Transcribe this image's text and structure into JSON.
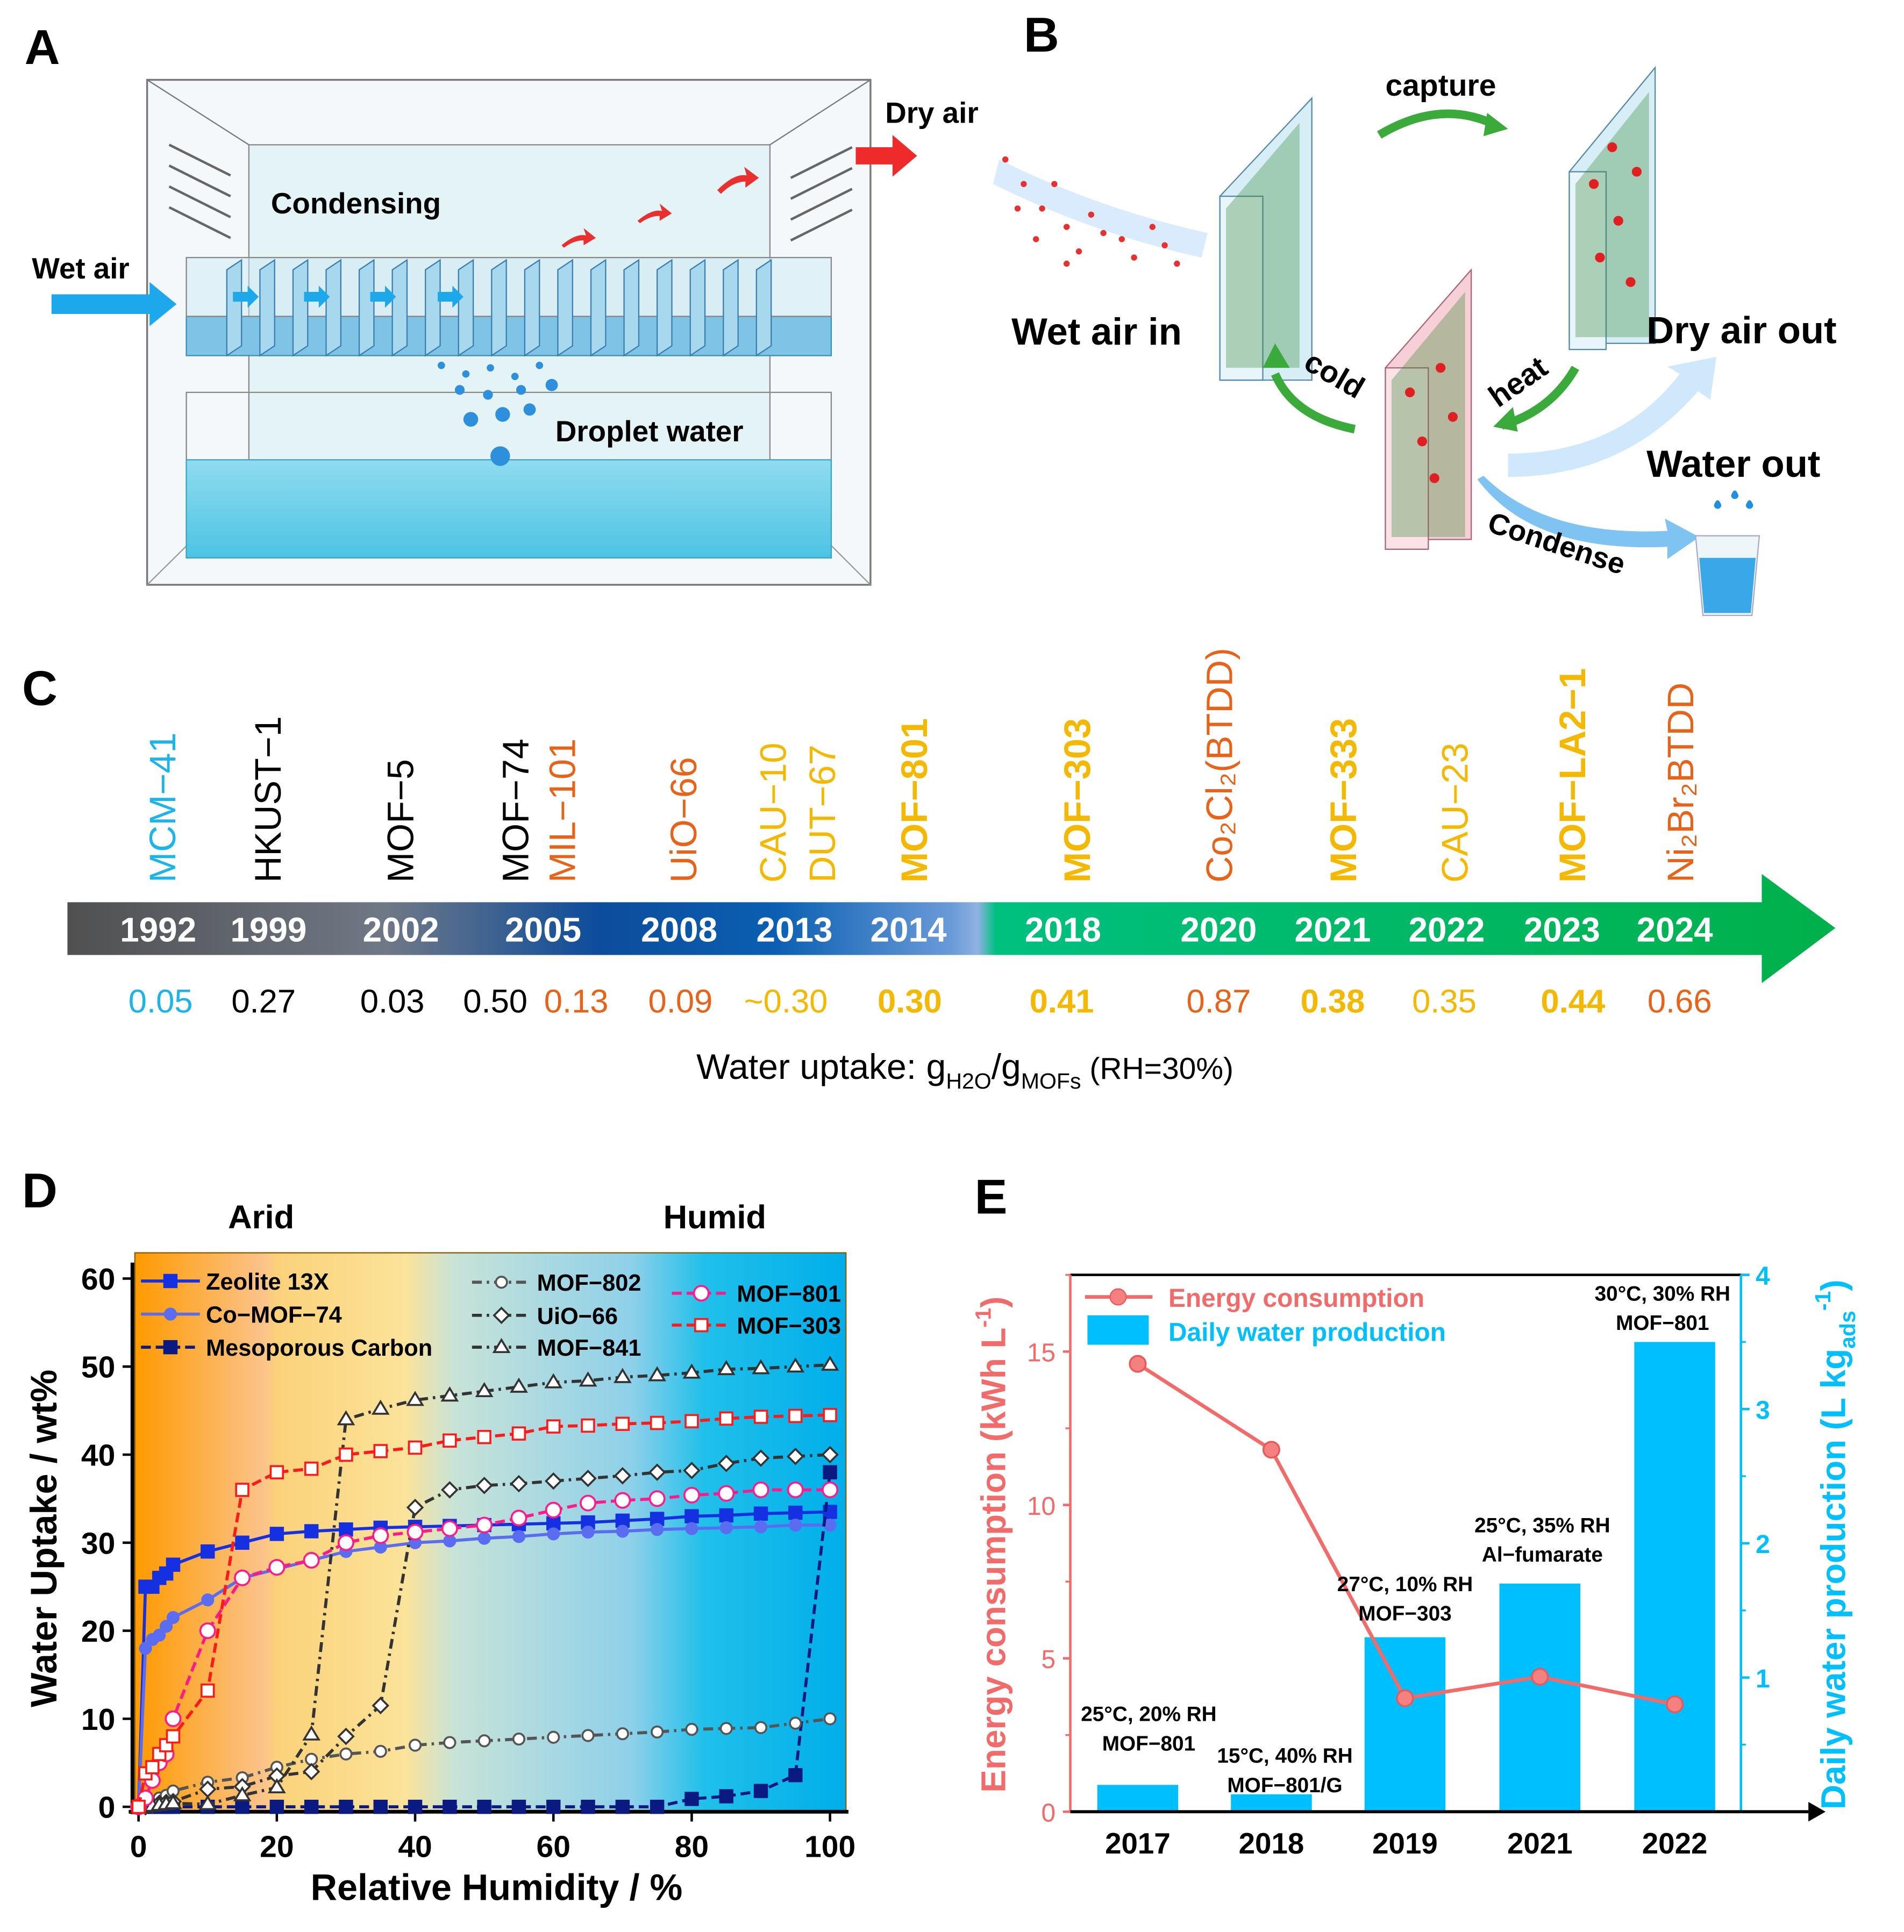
{
  "panels": {
    "a": "A",
    "b": "B",
    "c": "C",
    "d": "D",
    "e": "E"
  },
  "panel_a": {
    "condensing": "Condensing",
    "wet_air": "Wet air",
    "dry_air": "Dry air",
    "droplet_water": "Droplet water"
  },
  "panel_b": {
    "capture": "capture",
    "wet_air_in": "Wet air in",
    "dry_air_out": "Dry air out",
    "water_out": "Water out",
    "cold": "cold",
    "heat": "heat",
    "condense": "Condense"
  },
  "timeline": {
    "items": [
      {
        "year": "1992",
        "names": [
          {
            "n": "MCM−41",
            "c": "#1eb4ea",
            "b": false
          }
        ],
        "values": [
          {
            "v": "0.05",
            "c": "#1eb4ea",
            "b": false
          }
        ]
      },
      {
        "year": "1999",
        "names": [
          {
            "n": "HKUST−1",
            "c": "#000000",
            "b": false
          }
        ],
        "values": [
          {
            "v": "0.27",
            "c": "#000000",
            "b": false
          }
        ]
      },
      {
        "year": "2002",
        "names": [
          {
            "n": "MOF−5",
            "c": "#000000",
            "b": false
          }
        ],
        "values": [
          {
            "v": "0.03",
            "c": "#000000",
            "b": false
          }
        ]
      },
      {
        "year": "2005",
        "names": [
          {
            "n": "MOF−74",
            "c": "#000000",
            "b": false
          },
          {
            "n": "MIL−101",
            "c": "#e8631a",
            "b": false
          }
        ],
        "values": [
          {
            "v": "0.50",
            "c": "#000000",
            "b": false
          },
          {
            "v": "0.13",
            "c": "#e8631a",
            "b": false
          }
        ]
      },
      {
        "year": "2008",
        "names": [
          {
            "n": "UiO−66",
            "c": "#e8631a",
            "b": false
          }
        ],
        "values": [
          {
            "v": "0.09",
            "c": "#e8631a",
            "b": false
          }
        ]
      },
      {
        "year": "2013",
        "names": [
          {
            "n": "CAU−10",
            "c": "#f5b800",
            "b": false
          },
          {
            "n": "DUT−67",
            "c": "#f5b800",
            "b": false
          }
        ],
        "values": [
          {
            "v": "~0.30",
            "c": "#f5b800",
            "b": false
          }
        ]
      },
      {
        "year": "2014",
        "names": [
          {
            "n": "MOF−801",
            "c": "#f5b800",
            "b": true
          }
        ],
        "values": [
          {
            "v": "0.30",
            "c": "#f5b800",
            "b": true
          }
        ]
      },
      {
        "year": "2018",
        "names": [
          {
            "n": "MOF−303",
            "c": "#f5b800",
            "b": true
          }
        ],
        "values": [
          {
            "v": "0.41",
            "c": "#f5b800",
            "b": true
          }
        ]
      },
      {
        "year": "2020",
        "names": [
          {
            "n": "Co₂Cl₂(BTDD)",
            "c": "#e8631a",
            "b": false
          }
        ],
        "values": [
          {
            "v": "0.87",
            "c": "#e8631a",
            "b": false
          }
        ]
      },
      {
        "year": "2021",
        "names": [
          {
            "n": "MOF−333",
            "c": "#f5b800",
            "b": true
          }
        ],
        "values": [
          {
            "v": "0.38",
            "c": "#f5b800",
            "b": true
          }
        ]
      },
      {
        "year": "2022",
        "names": [
          {
            "n": "CAU−23",
            "c": "#f5b800",
            "b": false
          }
        ],
        "values": [
          {
            "v": "0.35",
            "c": "#f5b800",
            "b": false
          }
        ]
      },
      {
        "year": "2023",
        "names": [
          {
            "n": "MOF−LA2−1",
            "c": "#f5b800",
            "b": true
          }
        ],
        "values": [
          {
            "v": "0.44",
            "c": "#f5b800",
            "b": true
          }
        ]
      },
      {
        "year": "2024",
        "names": [
          {
            "n": "Ni₂Br₂BTDD",
            "c": "#e8631a",
            "b": false
          }
        ],
        "values": [
          {
            "v": "0.66",
            "c": "#e8631a",
            "b": false
          }
        ]
      }
    ],
    "caption": {
      "prefix": "Water uptake: g",
      "sub1": "H2O",
      "mid": "/g",
      "sub2": "MOFs",
      "suffix": " (RH=30%)"
    }
  },
  "chart_data": [
    {
      "type": "line",
      "panel": "D",
      "xlabel": "Relative Humidity / %",
      "ylabel": "Water Uptake / wt%",
      "xlim": [
        0,
        100
      ],
      "ylim": [
        0,
        60
      ],
      "xticks": [
        "0",
        "20",
        "40",
        "60",
        "80",
        "100"
      ],
      "yticks": [
        "0",
        "10",
        "20",
        "30",
        "40",
        "50",
        "60"
      ],
      "region_labels": {
        "arid": "Arid",
        "humid": "Humid"
      },
      "x": [
        0,
        1,
        2,
        3,
        4,
        5,
        10,
        15,
        20,
        25,
        30,
        35,
        40,
        45,
        50,
        55,
        60,
        65,
        70,
        75,
        80,
        85,
        90,
        95,
        100
      ],
      "series": [
        {
          "name": "Zeolite 13X",
          "color": "#1530e0",
          "marker": "square-filled",
          "dash": "solid",
          "values": [
            0,
            25,
            25,
            26,
            26.5,
            27.5,
            29,
            30,
            31,
            31.3,
            31.5,
            31.7,
            31.8,
            31.9,
            32,
            32.1,
            32.2,
            32.3,
            32.5,
            32.7,
            33,
            33.1,
            33.3,
            33.4,
            33.5
          ]
        },
        {
          "name": "Co−MOF−74",
          "color": "#5a6cf0",
          "marker": "circle-filled",
          "dash": "solid",
          "values": [
            0,
            18,
            19,
            19.5,
            20.5,
            21.5,
            23.5,
            26,
            27,
            28,
            29,
            29.5,
            30,
            30.2,
            30.5,
            30.7,
            31,
            31.2,
            31.3,
            31.5,
            31.6,
            31.7,
            31.8,
            32,
            32
          ]
        },
        {
          "name": "Mesoporous Carbon",
          "color": "#0a1a80",
          "marker": "square-filled",
          "dash": "dash",
          "values": [
            0,
            0,
            0,
            0,
            0,
            0,
            0,
            0,
            0,
            0,
            0,
            0,
            0,
            0,
            0,
            0,
            0,
            0,
            0,
            0,
            0.9,
            1.2,
            1.8,
            3.6,
            38
          ]
        },
        {
          "name": "MOF−802",
          "color": "#555555",
          "marker": "circle-open",
          "dash": "dashdot",
          "values": [
            0,
            0.3,
            0.6,
            1,
            1.3,
            1.8,
            2.8,
            3.3,
            4.5,
            5.4,
            6,
            6.3,
            7,
            7.3,
            7.5,
            7.7,
            7.9,
            8.1,
            8.3,
            8.5,
            8.8,
            8.9,
            9,
            9.5,
            10
          ]
        },
        {
          "name": "UiO−66",
          "color": "#333333",
          "marker": "diamond-open",
          "dash": "dashdot",
          "values": [
            0,
            0,
            0.2,
            0.4,
            0.5,
            0.6,
            2,
            2.3,
            3.5,
            4,
            8,
            11.5,
            34,
            36,
            36.5,
            36.7,
            37,
            37.3,
            37.6,
            38,
            38.2,
            39,
            39.6,
            39.8,
            40
          ]
        },
        {
          "name": "MOF−841",
          "color": "#333333",
          "marker": "triangle-open",
          "dash": "dashdot",
          "values": [
            0,
            0,
            0.1,
            0.2,
            0.3,
            0.4,
            0.3,
            1.3,
            2.2,
            8.2,
            44,
            45.2,
            46.2,
            46.7,
            47.2,
            47.7,
            48.2,
            48.4,
            48.8,
            49,
            49.3,
            49.7,
            49.8,
            50,
            50.2
          ]
        },
        {
          "name": "MOF−801",
          "color": "#ff1a8c",
          "marker": "circle-open",
          "dash": "dash",
          "values": [
            0,
            1,
            3,
            5,
            6,
            10,
            20,
            26,
            27.2,
            28,
            30,
            30.8,
            31.2,
            31.6,
            32,
            32.8,
            33.7,
            34.5,
            34.8,
            35,
            35.4,
            35.6,
            36,
            36,
            36
          ]
        },
        {
          "name": "MOF−303",
          "color": "#ff1a1a",
          "marker": "square-open",
          "dash": "dash",
          "values": [
            0,
            3.8,
            4.5,
            6,
            7,
            8,
            13.2,
            36,
            38,
            38.4,
            40,
            40.4,
            40.8,
            41.6,
            42,
            42.4,
            43.2,
            43.3,
            43.5,
            43.6,
            43.8,
            44.1,
            44.3,
            44.4,
            44.5
          ]
        }
      ]
    },
    {
      "type": "bar+line",
      "panel": "E",
      "categories": [
        "2017",
        "2018",
        "2019",
        "2021",
        "2022"
      ],
      "series": [
        {
          "name": "Energy consumption",
          "type": "line",
          "axis": "left",
          "color": "#f26b6b",
          "values": [
            14.6,
            11.8,
            3.7,
            4.4,
            3.5
          ]
        },
        {
          "name": "Daily water production",
          "type": "bar",
          "axis": "right",
          "color": "#00bfff",
          "values": [
            0.2,
            0.13,
            1.3,
            1.7,
            3.5
          ]
        }
      ],
      "annotations": [
        {
          "line1": "25°C, 20% RH",
          "line2": "MOF−801"
        },
        {
          "line1": "15°C, 40% RH",
          "line2": "MOF−801/G"
        },
        {
          "line1": "27°C, 10% RH",
          "line2": "MOF−303"
        },
        {
          "line1": "25°C, 35% RH",
          "line2": "Al−fumarate"
        },
        {
          "line1": "30°C, 30% RH",
          "line2": "MOF−801"
        }
      ],
      "ylabel_left": "Energy consumption (kWh L",
      "ylabel_left_sup": "-1",
      "ylabel_right": "Daily water production (L kg",
      "ylabel_right_sub": "ads",
      "ylabel_right_sup": "-1",
      "ylim_left": [
        0,
        17.5
      ],
      "ylim_right": [
        0,
        4
      ],
      "yticks_left": [
        "0",
        "5",
        "10",
        "15"
      ],
      "yticks_right": [
        "1",
        "2",
        "3",
        "4"
      ]
    }
  ]
}
